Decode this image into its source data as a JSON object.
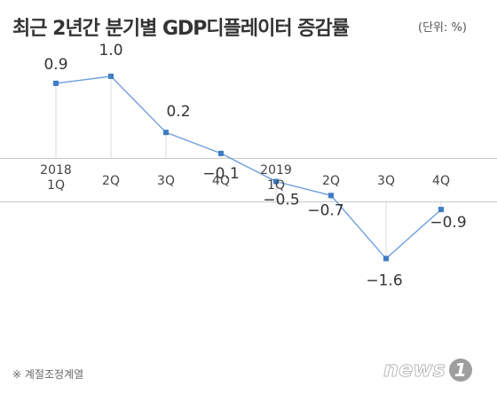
{
  "header": {
    "title": "최근 2년간 분기별 GDP디플레이터 증감률",
    "unit": "(단위: %)"
  },
  "footnote": "※ 계절조정계열",
  "logo": {
    "text": "news",
    "num": "1"
  },
  "colors": {
    "line": "#6f9fdc",
    "marker": "#3e7cc4",
    "band": "#c8c8c8",
    "text": "#333333"
  },
  "chart_data": {
    "type": "line",
    "categories": [
      [
        "2018",
        "1Q"
      ],
      [
        "2Q"
      ],
      [
        "3Q"
      ],
      [
        "4Q"
      ],
      [
        "2019",
        "1Q"
      ],
      [
        "2Q"
      ],
      [
        "3Q"
      ],
      [
        "4Q"
      ]
    ],
    "series": [
      {
        "values": [
          0.9,
          1.0,
          0.2,
          -0.1,
          -0.5,
          -0.7,
          -1.6,
          -0.9
        ],
        "labels": [
          "0.9",
          "1.0",
          "0.2",
          "−0.1",
          "−0.5",
          "−0.7",
          "−1.6",
          "−0.9"
        ]
      }
    ]
  }
}
